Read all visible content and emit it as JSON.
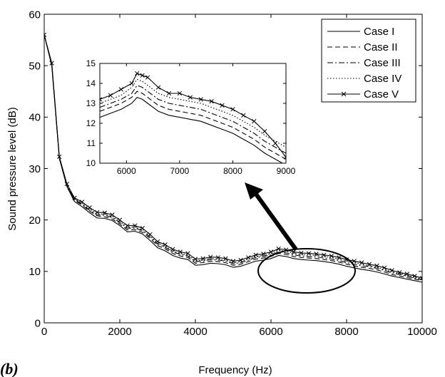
{
  "panel_label": "(b)",
  "chart_data": [
    {
      "type": "line",
      "role": "main",
      "title": "",
      "xlabel": "Frequency (Hz)",
      "ylabel": "Sound pressure level (dB)",
      "xlim": [
        0,
        10000
      ],
      "ylim": [
        0,
        60
      ],
      "xticks": [
        0,
        2000,
        4000,
        6000,
        8000,
        10000
      ],
      "yticks": [
        0,
        10,
        20,
        30,
        40,
        50,
        60
      ],
      "grid": false,
      "legend_position": "top-right",
      "x": [
        0,
        200,
        400,
        600,
        800,
        1000,
        1200,
        1400,
        1600,
        1800,
        2000,
        2200,
        2400,
        2600,
        2800,
        3000,
        3200,
        3400,
        3600,
        3800,
        4000,
        4200,
        4400,
        4600,
        4800,
        5000,
        5200,
        5400,
        5600,
        5800,
        6000,
        6200,
        6400,
        6600,
        6800,
        7000,
        7200,
        7400,
        7600,
        7800,
        8000,
        8200,
        8400,
        8600,
        8800,
        9000,
        9200,
        9400,
        9600,
        9800,
        10000
      ],
      "series": [
        {
          "name": "Case I",
          "style": "solid",
          "values": [
            56,
            50,
            32,
            26.5,
            23.6,
            22.6,
            21.4,
            20.4,
            20.3,
            19.9,
            18.9,
            17.7,
            17.8,
            17.3,
            16,
            14.6,
            14,
            13.1,
            12.6,
            12.3,
            11.2,
            11.3,
            11.6,
            11.5,
            11.3,
            10.8,
            11,
            11.5,
            12,
            12.2,
            12.5,
            13.1,
            12.9,
            12.5,
            12.3,
            12.2,
            12.1,
            11.9,
            11.7,
            11.4,
            11,
            10.7,
            10.4,
            10.2,
            9.9,
            9.5,
            9.1,
            8.8,
            8.5,
            8.2,
            7.9
          ]
        },
        {
          "name": "Case II",
          "style": "dashed",
          "values": [
            56,
            50.2,
            32,
            26.6,
            23.8,
            22.9,
            21.7,
            20.8,
            20.6,
            20.2,
            19.2,
            18.1,
            18.1,
            17.6,
            16.4,
            15,
            14.4,
            13.5,
            13,
            12.7,
            11.6,
            11.7,
            12,
            11.9,
            11.7,
            11.2,
            11.4,
            11.9,
            12.4,
            12.6,
            12.9,
            13.5,
            13.3,
            12.9,
            12.7,
            12.6,
            12.5,
            12.3,
            12.1,
            11.8,
            11.4,
            11.1,
            10.8,
            10.6,
            10.3,
            9.9,
            9.4,
            9.1,
            8.8,
            8.5,
            8.2
          ]
        },
        {
          "name": "Case III",
          "style": "dashdot",
          "values": [
            56,
            50.3,
            32.1,
            26.7,
            24,
            23.1,
            21.9,
            21,
            20.9,
            20.5,
            19.5,
            18.4,
            18.4,
            17.9,
            16.7,
            15.3,
            14.7,
            13.8,
            13.3,
            13,
            11.9,
            12,
            12.3,
            12.2,
            12,
            11.5,
            11.7,
            12.2,
            12.7,
            12.9,
            13.2,
            13.8,
            13.6,
            13.2,
            13,
            12.9,
            12.8,
            12.6,
            12.4,
            12.1,
            11.7,
            11.4,
            11.1,
            10.9,
            10.6,
            10.2,
            9.7,
            9.4,
            9.1,
            8.7,
            8.4
          ]
        },
        {
          "name": "Case IV",
          "style": "dotted",
          "values": [
            56,
            50.4,
            32.2,
            26.8,
            24.1,
            23.3,
            22.1,
            21.2,
            21.1,
            20.7,
            19.7,
            18.6,
            18.6,
            18.1,
            16.9,
            15.5,
            14.9,
            14,
            13.5,
            13.2,
            12.1,
            12.2,
            12.5,
            12.4,
            12.2,
            11.7,
            11.9,
            12.4,
            12.9,
            13.1,
            13.5,
            14.1,
            13.9,
            13.5,
            13.3,
            13.2,
            13.1,
            12.9,
            12.7,
            12.4,
            12,
            11.7,
            11.4,
            11.1,
            10.8,
            10.4,
            9.9,
            9.6,
            9.3,
            8.9,
            8.5
          ]
        },
        {
          "name": "Case V",
          "style": "solid-x",
          "values": [
            56,
            50.5,
            32.3,
            27,
            24.3,
            23.5,
            22.4,
            21.5,
            21.4,
            21,
            20,
            18.9,
            18.9,
            18.4,
            17.2,
            15.8,
            15.2,
            14.3,
            13.8,
            13.5,
            12.4,
            12.5,
            12.8,
            12.7,
            12.5,
            12,
            12.2,
            12.7,
            13.2,
            13.4,
            13.8,
            14.4,
            14.2,
            13.8,
            13.6,
            13.5,
            13.4,
            13.2,
            13,
            12.7,
            12.3,
            12,
            11.7,
            11.4,
            11.1,
            10.7,
            10.2,
            9.8,
            9.5,
            9.1,
            8.7
          ]
        }
      ],
      "annotations": [
        "ellipse around 6000–8000 Hz region",
        "arrow pointing to inset"
      ]
    },
    {
      "type": "line",
      "role": "inset",
      "title": "",
      "xlabel": "",
      "ylabel": "",
      "xlim": [
        5500,
        9000
      ],
      "ylim": [
        10,
        15
      ],
      "xticks": [
        6000,
        7000,
        8000,
        9000
      ],
      "yticks": [
        10,
        11,
        12,
        13,
        14,
        15
      ],
      "grid": false,
      "x": [
        5500,
        5700,
        5900,
        6100,
        6200,
        6300,
        6400,
        6600,
        6800,
        7000,
        7200,
        7400,
        7600,
        7800,
        8000,
        8200,
        8400,
        8600,
        8800,
        9000
      ],
      "series": [
        {
          "name": "Case I",
          "style": "solid",
          "values": [
            12.3,
            12.5,
            12.7,
            13,
            13.3,
            13.2,
            13,
            12.6,
            12.4,
            12.3,
            12.2,
            12.1,
            11.9,
            11.7,
            11.5,
            11.2,
            10.9,
            10.5,
            10.2,
            9.9
          ]
        },
        {
          "name": "Case II",
          "style": "dashed",
          "values": [
            12.6,
            12.8,
            13,
            13.3,
            13.6,
            13.5,
            13.3,
            12.9,
            12.7,
            12.6,
            12.5,
            12.4,
            12.2,
            12,
            11.8,
            11.5,
            11.2,
            10.8,
            10.5,
            10.2
          ]
        },
        {
          "name": "Case III",
          "style": "dashdot",
          "values": [
            12.8,
            13,
            13.2,
            13.5,
            13.9,
            13.8,
            13.6,
            13.2,
            13,
            12.9,
            12.8,
            12.7,
            12.5,
            12.3,
            12.1,
            11.8,
            11.5,
            11.1,
            10.8,
            10.5
          ]
        },
        {
          "name": "Case IV",
          "style": "dotted",
          "values": [
            13,
            13.2,
            13.4,
            13.8,
            14.2,
            14.1,
            13.9,
            13.5,
            13.3,
            13.2,
            13.1,
            13,
            12.8,
            12.6,
            12.4,
            12.1,
            11.8,
            11.4,
            11.1,
            10.8
          ]
        },
        {
          "name": "Case V",
          "style": "solid-x",
          "values": [
            13.2,
            13.4,
            13.7,
            14,
            14.5,
            14.4,
            14.3,
            13.8,
            13.5,
            13.5,
            13.3,
            13.2,
            13.1,
            12.9,
            12.7,
            12.4,
            12.1,
            11.6,
            11,
            10.3
          ]
        }
      ]
    }
  ]
}
